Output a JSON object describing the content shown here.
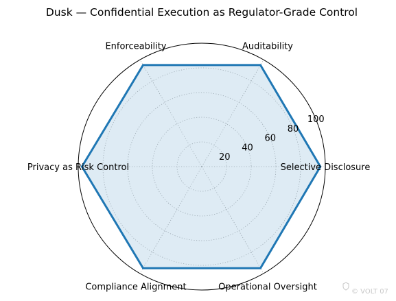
{
  "chart_data": {
    "type": "radar",
    "title": "Dusk — Confidential Execution as Regulator-Grade Control",
    "categories": [
      "Selective Disclosure",
      "Auditability",
      "Enforceability",
      "Privacy as Risk Control",
      "Compliance Alignment",
      "Operational Oversight"
    ],
    "series": [
      {
        "values": [
          96,
          95,
          95,
          97,
          95,
          95
        ],
        "color": "#1f77b4",
        "fill_color": "#1f77b4",
        "fill_opacity": 0.15
      }
    ],
    "rlim": [
      0,
      100
    ],
    "r_ticks": [
      20,
      40,
      60,
      80,
      100
    ],
    "grid": true
  },
  "watermark": {
    "text": "© VOLT 07",
    "icon": "shield-icon"
  }
}
